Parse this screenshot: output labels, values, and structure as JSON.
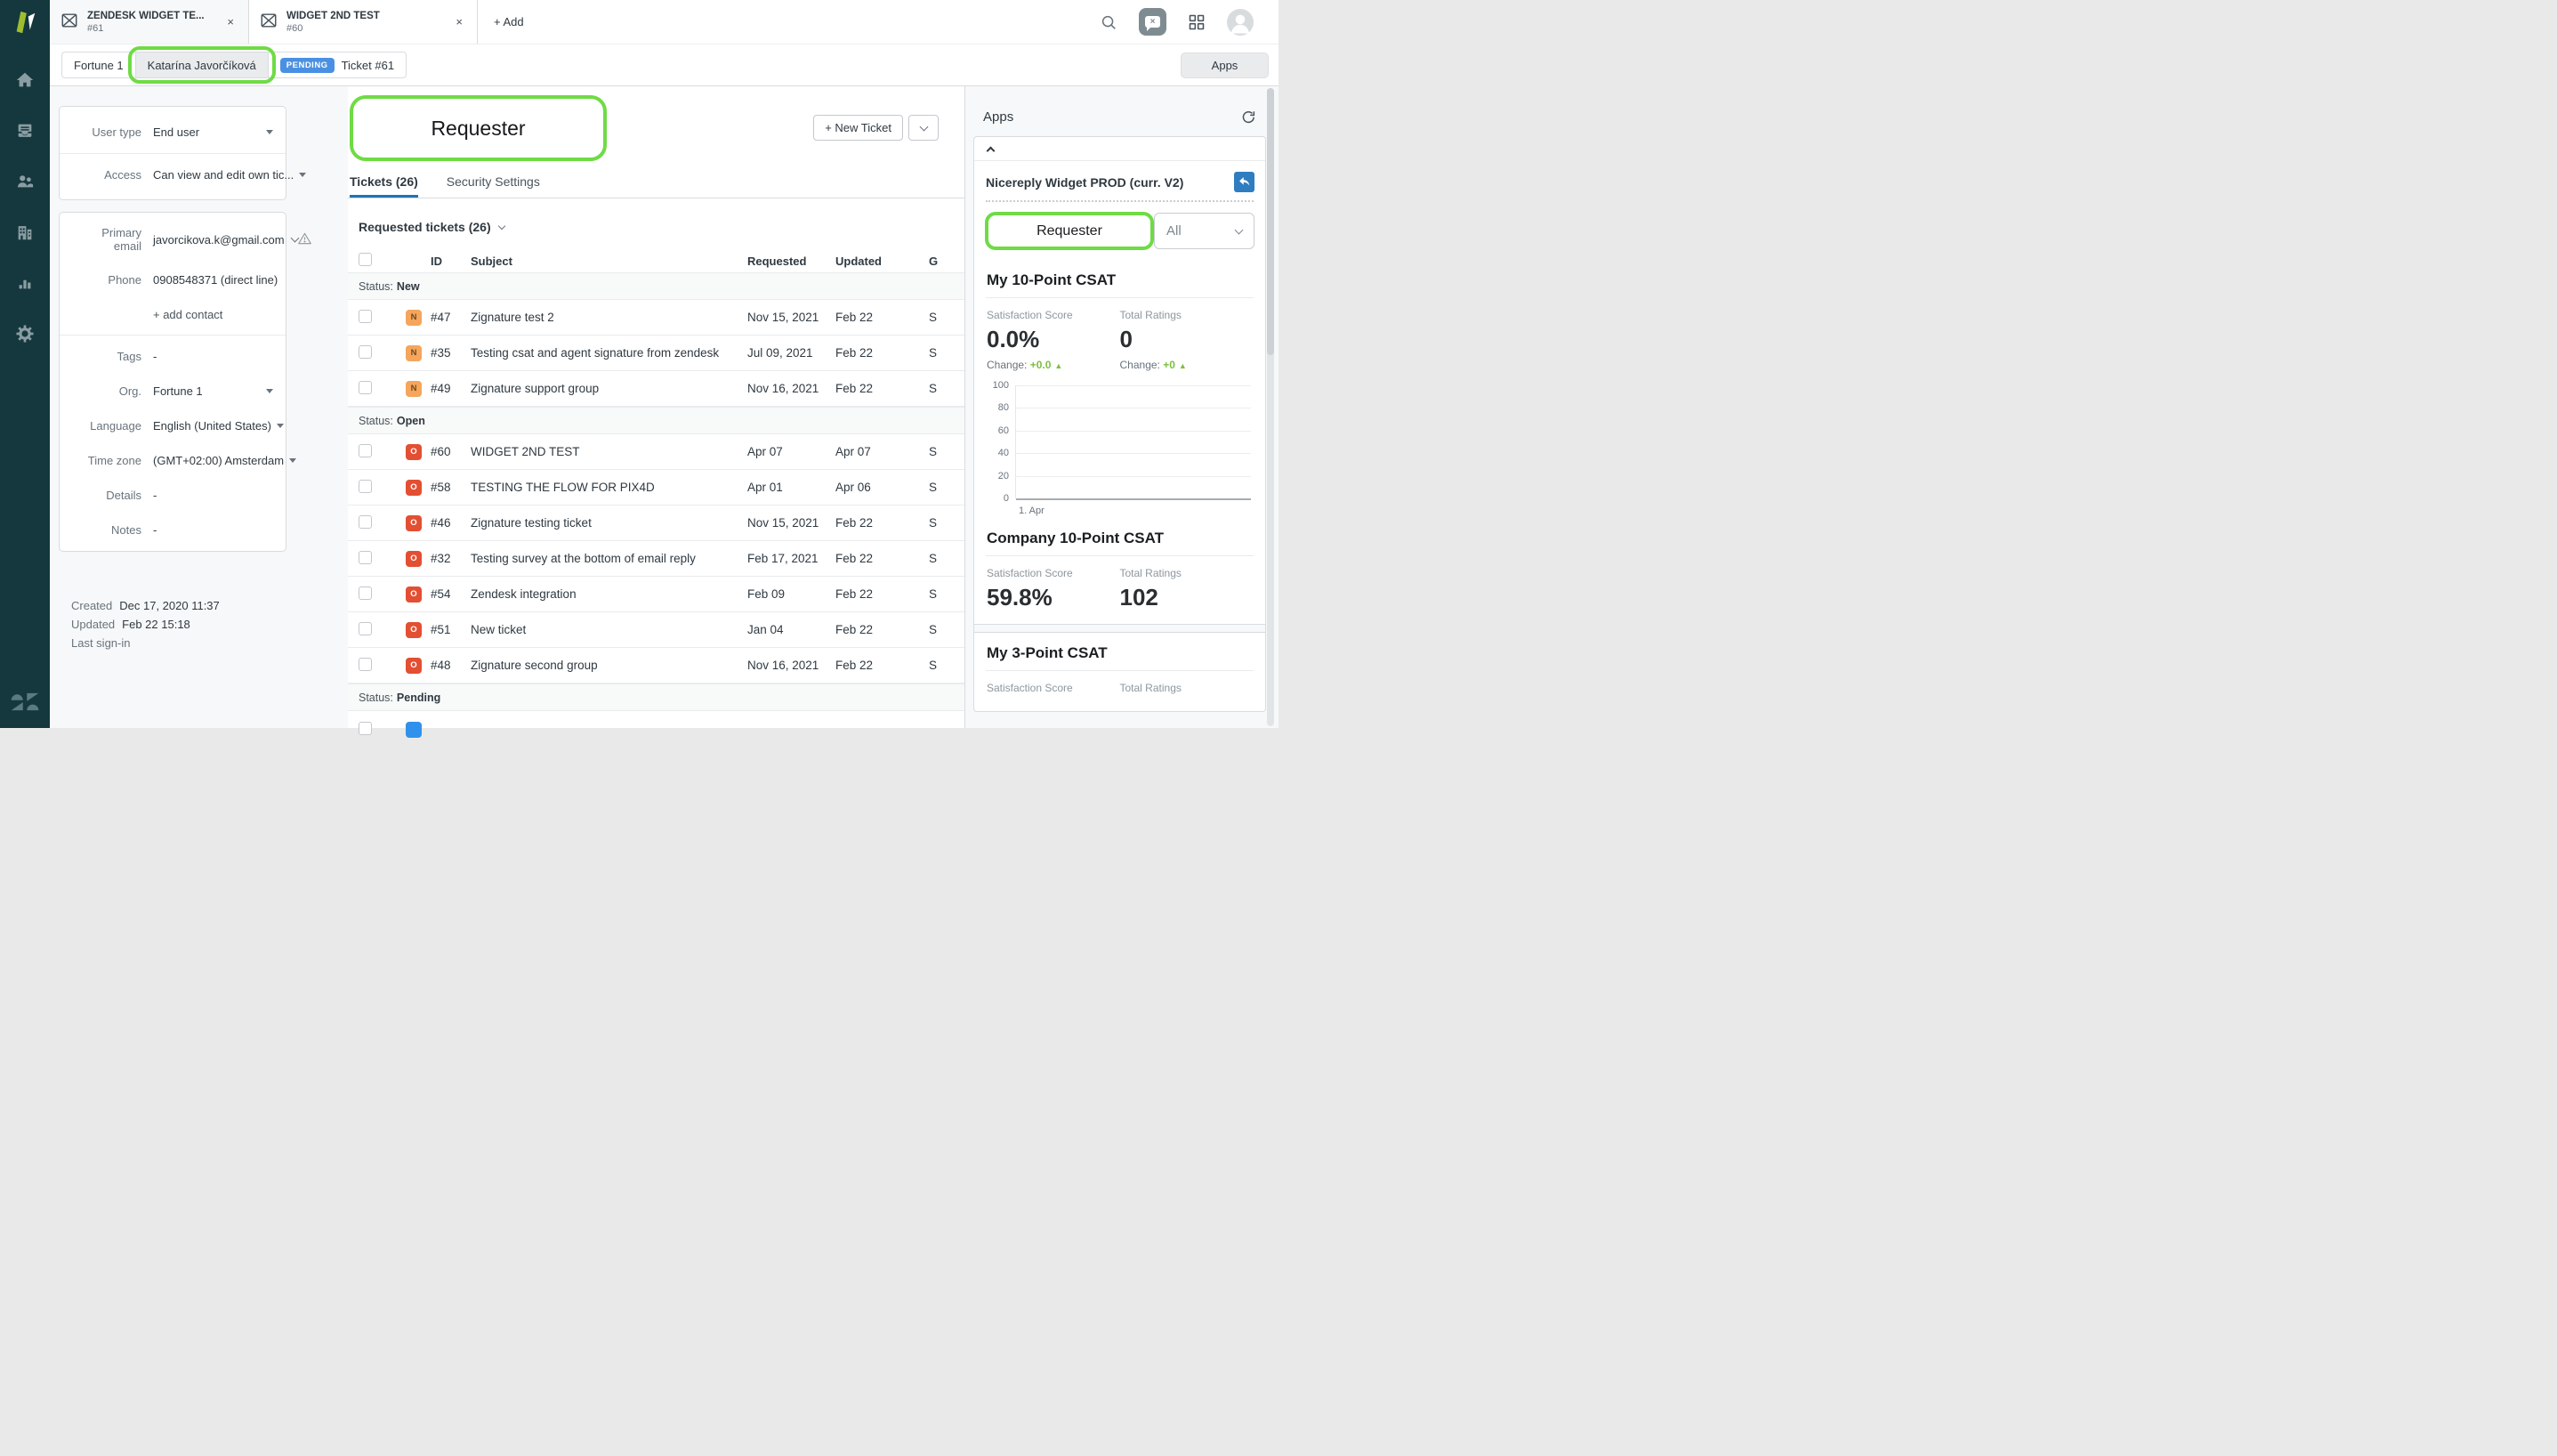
{
  "colors": {
    "sidebar-bg": "#14383E",
    "accent-blue": "#1F73B7",
    "annotation-green": "#6FDB45",
    "pending-badge": "#4A90E2",
    "badge-new-bg": "#F5A55C",
    "badge-new-text": "#6E4A1F",
    "badge-open-bg": "#E34F32",
    "badge-pending-bg": "#3091EC",
    "change-green": "#7CBF3F"
  },
  "icons": [
    "brand-logo",
    "home-icon",
    "views-icon",
    "customers-icon",
    "organizations-icon",
    "reporting-icon",
    "admin-gear-icon",
    "zendesk-logo",
    "ticket-envelope-icon",
    "close-icon",
    "search-icon",
    "messaging-widget-icon",
    "grid-icon",
    "avatar",
    "refresh-icon",
    "collapse-up-icon",
    "reply-icon",
    "chevron-down-icon",
    "warning-icon",
    "checkbox",
    "change-up-arrow"
  ],
  "topbar": {
    "tabs": [
      {
        "title": "ZENDESK WIDGET TE...",
        "subtitle": "#61",
        "close": "×"
      },
      {
        "title": "WIDGET 2ND TEST",
        "subtitle": "#60",
        "close": "×"
      }
    ],
    "add_label": "+ Add"
  },
  "breadcrumb": {
    "org": "Fortune 1",
    "user": "Katarína Javorčíková",
    "status_badge": "PENDING",
    "ticket": "Ticket #61",
    "apps_button": "Apps"
  },
  "profile": {
    "card1": {
      "rows": [
        {
          "label": "User type",
          "value": "End user",
          "chevron": true
        },
        {
          "label": "Access",
          "value": "Can view and edit own tic...",
          "chevron": true
        }
      ]
    },
    "card2": {
      "rows": [
        {
          "label": "Primary email",
          "value": "javorcikova.k@gmail.com",
          "email": true,
          "warning": true
        },
        {
          "label": "Phone",
          "value": "0908548371 (direct line)"
        },
        {
          "type": "link",
          "value": "+ add contact"
        },
        {
          "type": "divider"
        },
        {
          "label": "Tags",
          "value": "-"
        },
        {
          "label": "Org.",
          "value": "Fortune 1",
          "chevron": true
        },
        {
          "label": "Language",
          "value": "English (United States)",
          "chevron": true
        },
        {
          "label": "Time zone",
          "value": "(GMT+02:00) Amsterdam",
          "chevron": true
        },
        {
          "label": "Details",
          "value": "-"
        },
        {
          "label": "Notes",
          "value": "-"
        }
      ]
    },
    "meta": [
      {
        "label": "Created",
        "value": "Dec 17, 2020 11:37"
      },
      {
        "label": "Updated",
        "value": "Feb 22 15:18"
      },
      {
        "label": "Last sign-in",
        "value": ""
      }
    ]
  },
  "main": {
    "annotation_label": "Requester",
    "new_ticket_label": "+ New Ticket",
    "tabs": [
      {
        "label": "Tickets (26)",
        "active": true
      },
      {
        "label": "Security Settings",
        "active": false
      }
    ],
    "list_title": "Requested tickets (26)",
    "table": {
      "columns": {
        "id": "ID",
        "subject": "Subject",
        "requested": "Requested",
        "updated": "Updated",
        "group": "G"
      },
      "rows": [
        {
          "type": "group",
          "label": "Status:",
          "value": "New"
        },
        {
          "type": "ticket",
          "badge": "N",
          "badge_type": "new",
          "id": "#47",
          "subject": "Zignature test 2",
          "requested": "Nov 15, 2021",
          "updated": "Feb 22",
          "group": "S"
        },
        {
          "type": "ticket",
          "badge": "N",
          "badge_type": "new",
          "id": "#35",
          "subject": "Testing csat and agent signature from zendesk",
          "requested": "Jul 09, 2021",
          "updated": "Feb 22",
          "group": "S"
        },
        {
          "type": "ticket",
          "badge": "N",
          "badge_type": "new",
          "id": "#49",
          "subject": "Zignature support group",
          "requested": "Nov 16, 2021",
          "updated": "Feb 22",
          "group": "S"
        },
        {
          "type": "group",
          "label": "Status:",
          "value": "Open"
        },
        {
          "type": "ticket",
          "badge": "O",
          "badge_type": "open",
          "id": "#60",
          "subject": "WIDGET 2ND TEST",
          "requested": "Apr 07",
          "updated": "Apr 07",
          "group": "S"
        },
        {
          "type": "ticket",
          "badge": "O",
          "badge_type": "open",
          "id": "#58",
          "subject": "TESTING THE FLOW FOR PIX4D",
          "requested": "Apr 01",
          "updated": "Apr 06",
          "group": "S"
        },
        {
          "type": "ticket",
          "badge": "O",
          "badge_type": "open",
          "id": "#46",
          "subject": "Zignature testing ticket",
          "requested": "Nov 15, 2021",
          "updated": "Feb 22",
          "group": "S"
        },
        {
          "type": "ticket",
          "badge": "O",
          "badge_type": "open",
          "id": "#32",
          "subject": "Testing survey at the bottom of email reply",
          "requested": "Feb 17, 2021",
          "updated": "Feb 22",
          "group": "S"
        },
        {
          "type": "ticket",
          "badge": "O",
          "badge_type": "open",
          "id": "#54",
          "subject": "Zendesk integration",
          "requested": "Feb 09",
          "updated": "Feb 22",
          "group": "S"
        },
        {
          "type": "ticket",
          "badge": "O",
          "badge_type": "open",
          "id": "#51",
          "subject": "New ticket",
          "requested": "Jan 04",
          "updated": "Feb 22",
          "group": "S"
        },
        {
          "type": "ticket",
          "badge": "O",
          "badge_type": "open",
          "id": "#48",
          "subject": "Zignature second group",
          "requested": "Nov 16, 2021",
          "updated": "Feb 22",
          "group": "S"
        },
        {
          "type": "group",
          "label": "Status:",
          "value": "Pending"
        },
        {
          "type": "ticket",
          "partial": true,
          "badge": "",
          "badge_type": "pending",
          "id": "",
          "subject": "",
          "requested": "",
          "updated": "",
          "group": ""
        }
      ]
    }
  },
  "apps_panel": {
    "title": "Apps",
    "widget": {
      "name": "Nicereply Widget PROD (curr. V2)",
      "requester_button": "Requester",
      "filter_value": "All",
      "sections": [
        {
          "title": "My 10-Point CSAT",
          "stats": [
            {
              "label": "Satisfaction Score",
              "value": "0.0%",
              "change_label": "Change:",
              "change": "+0.0"
            },
            {
              "label": "Total Ratings",
              "value": "0",
              "change_label": "Change:",
              "change": "+0"
            }
          ],
          "chart": {
            "type": "line",
            "yticks": [
              "100",
              "80",
              "60",
              "40",
              "20",
              "0"
            ],
            "ylim": [
              0,
              100
            ],
            "xlabel": "1. Apr",
            "series": [],
            "grid": true
          }
        },
        {
          "title": "Company 10-Point CSAT",
          "stats": [
            {
              "label": "Satisfaction Score",
              "value": "59.8%"
            },
            {
              "label": "Total Ratings",
              "value": "102"
            }
          ]
        },
        {
          "title": "My 3-Point CSAT",
          "separator_before": true,
          "stats": [
            {
              "label": "Satisfaction Score"
            },
            {
              "label": "Total Ratings"
            }
          ]
        }
      ]
    }
  }
}
